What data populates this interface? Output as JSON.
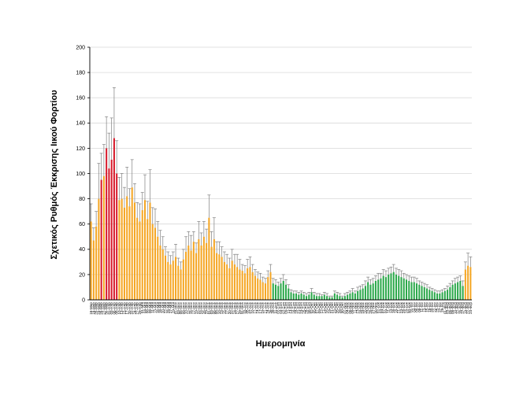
{
  "chart_data": {
    "type": "bar",
    "title": "",
    "xlabel": "Ημερομηνία",
    "ylabel": "Σχετικός Ρυθμός Έκκρισης Ιικού Φορτίου",
    "ylim": [
      0,
      200
    ],
    "yticks": [
      0,
      20,
      40,
      60,
      80,
      100,
      120,
      140,
      160,
      180,
      200
    ],
    "grid": true,
    "legend": "none",
    "colors": {
      "orange": "#F5A623",
      "red": "#D7192A",
      "green": "#2BA84A",
      "errorbar": "#808080",
      "grid": "#D9D9D9",
      "axis": "#000000"
    },
    "categories": [
      "16-Μαρ",
      "18-Μαρ",
      "20-Μαρ",
      "23-Μαρ",
      "25-Μαρ",
      "27-Μαρ",
      "30-Μαρ",
      "01-Απρ",
      "03-Απρ",
      "06-Απρ",
      "08-Απρ",
      "10-Απρ",
      "13-Απρ",
      "15-Απρ",
      "17-Απρ",
      "20-Απρ",
      "22-Απρ",
      "24-Απρ",
      "27-Απρ",
      "29-Απρ",
      "01-Μαϊ",
      "04-Μαϊ",
      "06-Μαϊ",
      "08-Μαϊ",
      "11-Μαϊ",
      "13-Μαϊ",
      "15-Μαϊ",
      "18-Μαϊ",
      "20-Μαϊ",
      "22-Μαϊ",
      "25-Μαϊ",
      "27-Μαϊ",
      "29-Μαϊ",
      "01-Ιουν",
      "03-Ιουν",
      "05-Ιουν",
      "08-Ιουν",
      "10-Ιουν",
      "12-Ιουν",
      "15-Ιουν",
      "17-Ιουν",
      "19-Ιουν",
      "22-Ιουν",
      "24-Ιουν",
      "26-Ιουν",
      "29-Ιουν",
      "01-Ιουλ",
      "03-Ιουλ",
      "06-Ιουλ",
      "08-Ιουλ",
      "10-Ιουλ",
      "13-Ιουλ",
      "15-Ιουλ",
      "17-Ιουλ",
      "20-Ιουλ",
      "22-Ιουλ",
      "24-Ιουλ",
      "27-Ιουλ",
      "29-Ιουλ",
      "31-Ιουλ",
      "03-Αυγ",
      "05-Αυγ",
      "07-Αυγ",
      "10-Αυγ",
      "12-Αυγ",
      "14-Αυγ",
      "17-Αυγ",
      "19-Αυγ",
      "21-Αυγ",
      "24-Αυγ",
      "26-Αυγ",
      "28-Αυγ",
      "31-Αυγ",
      "02-Σεπ",
      "04-Σεπ",
      "07-Σεπ",
      "09-Σεπ",
      "11-Σεπ",
      "14-Σεπ",
      "16-Σεπ",
      "18-Σεπ",
      "21-Σεπ",
      "23-Σεπ",
      "25-Σεπ",
      "28-Σεπ",
      "30-Σεπ",
      "02-Οκτ",
      "05-Οκτ",
      "07-Οκτ",
      "09-Οκτ",
      "12-Οκτ",
      "14-Οκτ",
      "16-Οκτ",
      "19-Οκτ",
      "21-Οκτ",
      "23-Οκτ",
      "26-Οκτ",
      "28-Οκτ",
      "30-Οκτ",
      "02-Νοε",
      "04-Νοε",
      "06-Νοε",
      "09-Νοε",
      "11-Νοε",
      "13-Νοε",
      "16-Νοε",
      "18-Νοε",
      "20-Νοε",
      "23-Νοε",
      "25-Νοε",
      "27-Νοε",
      "30-Νοε",
      "02-Δεκ",
      "04-Δεκ",
      "07-Δεκ",
      "09-Δεκ",
      "11-Δεκ",
      "14-Δεκ",
      "16-Δεκ",
      "18-Δεκ",
      "21-Δεκ",
      "23-Δεκ",
      "25-Δεκ",
      "28-Δεκ",
      "30-Δεκ",
      "01-Ιαν",
      "04-Ιαν",
      "06-Ιαν",
      "08-Ιαν",
      "11-Ιαν",
      "13-Ιαν",
      "15-Ιαν",
      "18-Ιαν",
      "20-Ιαν",
      "22-Ιαν",
      "25-Ιαν",
      "27-Ιαν",
      "29-Ιαν",
      "01-Φεβ",
      "03-Φεβ",
      "05-Φεβ",
      "08-Φεβ",
      "10-Φεβ",
      "12-Φεβ",
      "15-Φεβ",
      "17-Φεβ",
      "19-Φεβ",
      "22-Φεβ",
      "24-Φεβ"
    ],
    "series": [
      {
        "values": [
          62,
          47,
          58,
          80,
          95,
          98,
          120,
          104,
          111,
          128,
          100,
          79,
          80,
          73,
          82,
          74,
          89,
          77,
          65,
          62,
          71,
          79,
          64,
          77,
          60,
          57,
          50,
          43,
          40,
          35,
          30,
          28,
          31,
          34,
          27,
          24,
          32,
          38,
          43,
          39,
          46,
          37,
          48,
          43,
          50,
          45,
          65,
          42,
          48,
          37,
          36,
          34,
          30,
          28,
          25,
          31,
          28,
          26,
          24,
          23,
          21,
          25,
          26,
          22,
          19,
          17,
          16,
          14,
          13,
          18,
          22,
          13,
          12,
          11,
          13,
          15,
          12,
          9,
          6,
          5,
          5,
          4,
          5,
          4,
          3,
          4,
          6,
          4,
          3,
          3,
          3,
          4,
          3,
          2,
          2,
          5,
          4,
          3,
          2,
          3,
          4,
          5,
          6,
          5,
          7,
          8,
          9,
          11,
          14,
          12,
          13,
          15,
          16,
          17,
          19,
          18,
          20,
          21,
          22,
          20,
          19,
          18,
          17,
          16,
          15,
          14,
          14,
          13,
          12,
          11,
          10,
          9,
          8,
          7,
          6,
          5,
          5,
          6,
          7,
          8,
          10,
          12,
          13,
          14,
          15,
          11,
          24,
          27,
          26
        ],
        "errors": [
          14,
          10,
          12,
          28,
          21,
          25,
          25,
          28,
          33,
          40,
          26,
          18,
          20,
          16,
          23,
          14,
          22,
          15,
          12,
          14,
          14,
          20,
          14,
          26,
          13,
          15,
          12,
          12,
          10,
          7,
          8,
          7,
          7,
          10,
          6,
          6,
          8,
          12,
          11,
          12,
          8,
          8,
          14,
          10,
          12,
          11,
          18,
          12,
          17,
          9,
          10,
          8,
          8,
          8,
          8,
          9,
          8,
          10,
          8,
          5,
          6,
          7,
          8,
          6,
          5,
          5,
          5,
          4,
          4,
          5,
          6,
          4,
          4,
          3,
          4,
          5,
          4,
          3,
          2,
          2,
          2,
          2,
          2,
          2,
          2,
          2,
          3,
          2,
          2,
          2,
          1,
          2,
          2,
          1,
          1,
          2,
          2,
          2,
          1,
          2,
          2,
          2,
          3,
          2,
          3,
          3,
          3,
          4,
          4,
          4,
          4,
          4,
          5,
          4,
          5,
          5,
          5,
          5,
          6,
          5,
          5,
          5,
          4,
          4,
          4,
          4,
          4,
          4,
          3,
          3,
          3,
          3,
          2,
          2,
          2,
          2,
          2,
          2,
          2,
          3,
          3,
          3,
          4,
          4,
          4,
          4,
          6,
          10,
          8
        ],
        "colors": [
          "orange",
          "orange",
          "orange",
          "orange",
          "red",
          "orange",
          "red",
          "red",
          "red",
          "red",
          "red",
          "orange",
          "orange",
          "orange",
          "orange",
          "orange",
          "orange",
          "orange",
          "orange",
          "orange",
          "orange",
          "orange",
          "orange",
          "orange",
          "orange",
          "orange",
          "orange",
          "orange",
          "orange",
          "orange",
          "orange",
          "orange",
          "orange",
          "orange",
          "orange",
          "orange",
          "orange",
          "orange",
          "orange",
          "orange",
          "orange",
          "orange",
          "orange",
          "orange",
          "orange",
          "orange",
          "orange",
          "orange",
          "orange",
          "orange",
          "orange",
          "orange",
          "orange",
          "orange",
          "orange",
          "orange",
          "orange",
          "orange",
          "orange",
          "orange",
          "orange",
          "orange",
          "orange",
          "orange",
          "orange",
          "orange",
          "orange",
          "orange",
          "orange",
          "orange",
          "orange",
          "green",
          "green",
          "green",
          "green",
          "green",
          "green",
          "green",
          "green",
          "green",
          "green",
          "green",
          "green",
          "green",
          "green",
          "green",
          "green",
          "green",
          "green",
          "green",
          "green",
          "green",
          "green",
          "green",
          "green",
          "green",
          "green",
          "green",
          "green",
          "green",
          "green",
          "green",
          "green",
          "green",
          "green",
          "green",
          "green",
          "green",
          "green",
          "green",
          "green",
          "green",
          "green",
          "green",
          "green",
          "green",
          "green",
          "green",
          "green",
          "green",
          "green",
          "green",
          "green",
          "green",
          "green",
          "green",
          "green",
          "green",
          "green",
          "green",
          "green",
          "green",
          "green",
          "green",
          "green",
          "green",
          "green",
          "green",
          "green",
          "green",
          "green",
          "green",
          "green",
          "green",
          "green",
          "green",
          "orange",
          "orange",
          "orange",
          "orange"
        ]
      }
    ]
  }
}
